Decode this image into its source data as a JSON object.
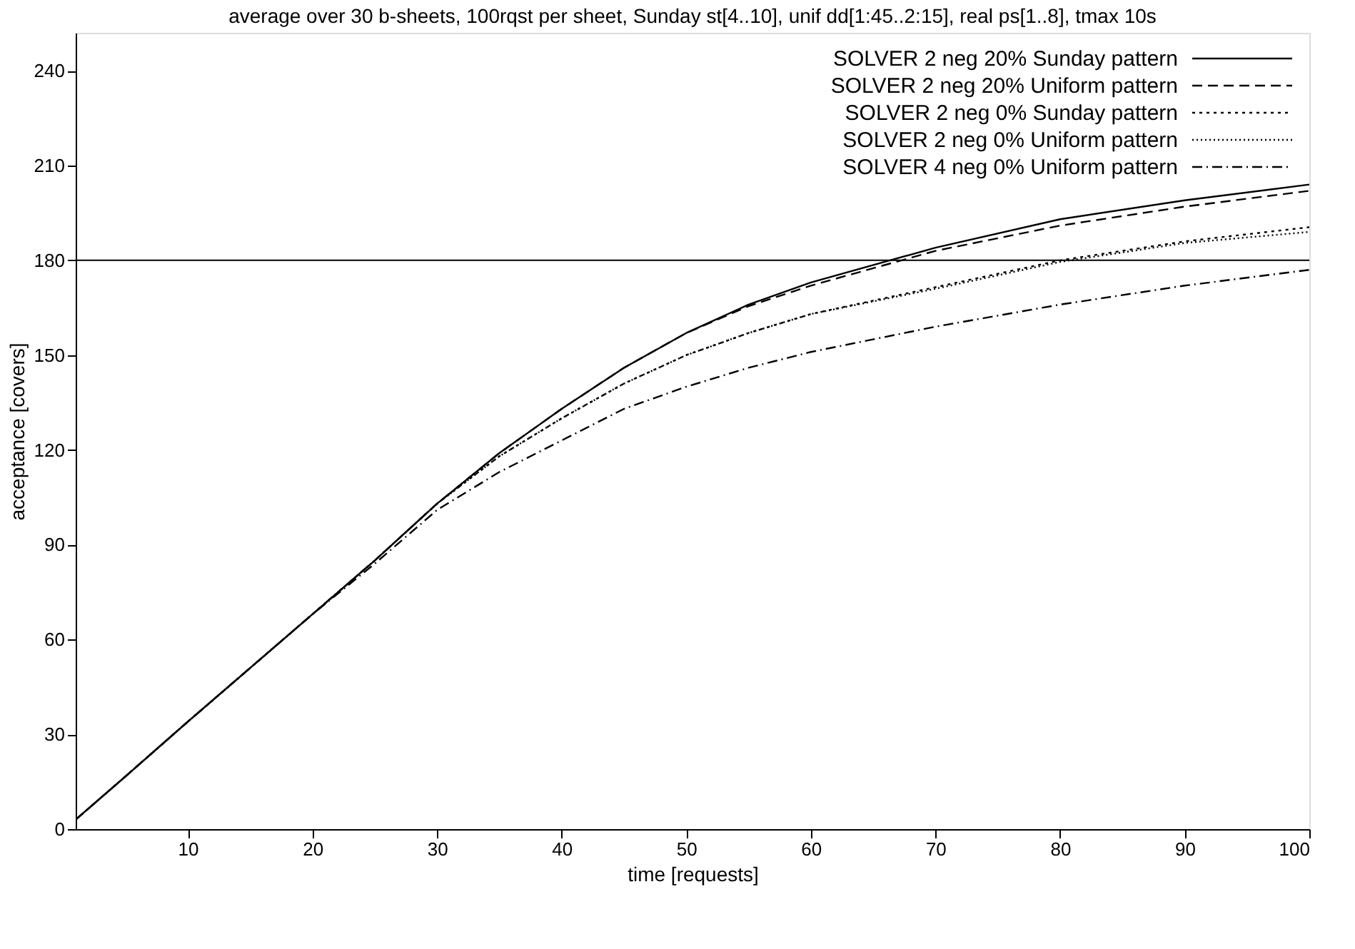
{
  "chart_data": {
    "type": "line",
    "title": "average over 30 b-sheets, 100rqst per sheet, Sunday st[4..10], unif dd[1:45..2:15], real ps[1..8], tmax 10s",
    "xlabel": "time [requests]",
    "ylabel": "acceptance [covers]",
    "xlim": [
      1,
      100
    ],
    "ylim": [
      0,
      252
    ],
    "xticks": [
      10,
      20,
      30,
      40,
      50,
      60,
      70,
      80,
      90,
      100
    ],
    "yticks": [
      0,
      30,
      60,
      90,
      120,
      150,
      180,
      210,
      240
    ],
    "grid": false,
    "legend": "top right",
    "marker": "none",
    "x": [
      1,
      5,
      10,
      15,
      20,
      25,
      30,
      35,
      40,
      45,
      50,
      55,
      60,
      70,
      80,
      90,
      100
    ],
    "series": [
      {
        "name": "SOLVER 2 neg 20% Sunday pattern",
        "color": "#000000",
        "line_style": "solid",
        "values": [
          3,
          16.7,
          34,
          51,
          68,
          85,
          103,
          119,
          133,
          146,
          157,
          166,
          173,
          184,
          193,
          199,
          204
        ]
      },
      {
        "name": "SOLVER 2 neg 20% Uniform pattern",
        "color": "#000000",
        "line_style": "dashed",
        "values": [
          3,
          16.7,
          34,
          51,
          68,
          85,
          103,
          119,
          133,
          146,
          157,
          165.5,
          172,
          183,
          191,
          197,
          202
        ]
      },
      {
        "name": "SOLVER 2 neg 0% Sunday pattern",
        "color": "#000000",
        "line_style": "dotted",
        "values": [
          3,
          16.7,
          34,
          51,
          68,
          85,
          103,
          118,
          130,
          141,
          150,
          157,
          163,
          171.5,
          180,
          186,
          190.5
        ]
      },
      {
        "name": "SOLVER 2 neg 0% Uniform pattern",
        "color": "#000000",
        "line_style": "dotted",
        "values": [
          3,
          16.7,
          34,
          51,
          68,
          85,
          103,
          118,
          130,
          141,
          150,
          157,
          163,
          171,
          179.5,
          185.5,
          189
        ]
      },
      {
        "name": "SOLVER 4 neg 0% Uniform pattern",
        "color": "#000000",
        "line_style": "dashdot",
        "values": [
          3,
          16.7,
          34,
          51,
          68,
          84,
          101,
          113,
          123,
          133,
          140,
          146,
          151,
          159,
          166,
          172,
          177
        ]
      }
    ],
    "ref_lines": [
      {
        "axis": "y",
        "value": 180,
        "label": null,
        "color": "#000000",
        "line_style": "solid"
      }
    ]
  }
}
